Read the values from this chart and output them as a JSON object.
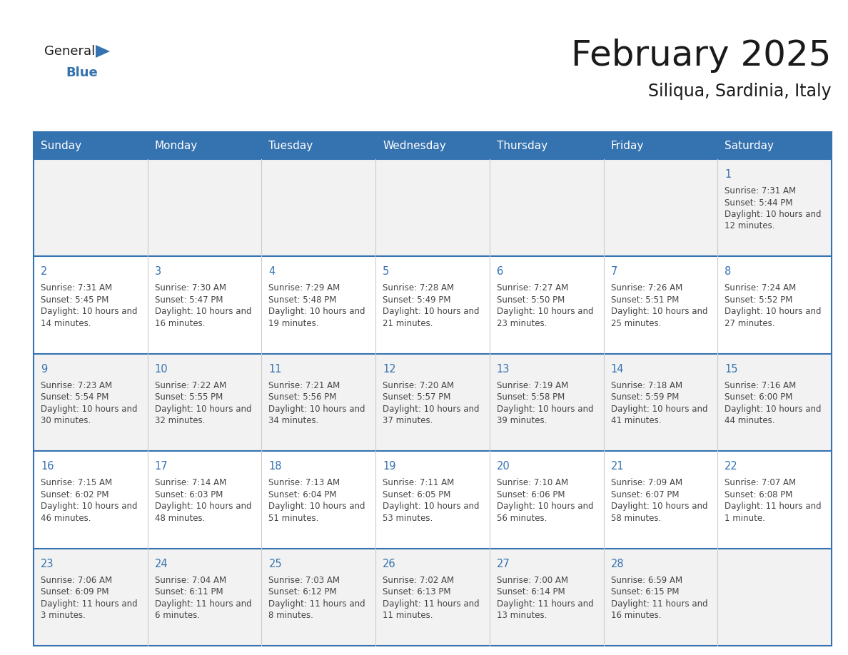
{
  "title": "February 2025",
  "subtitle": "Siliqua, Sardinia, Italy",
  "header_bg": "#3572B0",
  "header_text_color": "#FFFFFF",
  "header_font_size": 11,
  "days_of_week": [
    "Sunday",
    "Monday",
    "Tuesday",
    "Wednesday",
    "Thursday",
    "Friday",
    "Saturday"
  ],
  "title_font_size": 36,
  "subtitle_font_size": 17,
  "cell_text_color": "#444444",
  "day_number_color": "#3572B0",
  "line_color": "#3572B0",
  "bg_color": "#FFFFFF",
  "row_bg": [
    "#F2F2F2",
    "#FFFFFF",
    "#F2F2F2",
    "#FFFFFF",
    "#F2F2F2"
  ],
  "calendar": [
    [
      null,
      null,
      null,
      null,
      null,
      null,
      1
    ],
    [
      2,
      3,
      4,
      5,
      6,
      7,
      8
    ],
    [
      9,
      10,
      11,
      12,
      13,
      14,
      15
    ],
    [
      16,
      17,
      18,
      19,
      20,
      21,
      22
    ],
    [
      23,
      24,
      25,
      26,
      27,
      28,
      null
    ]
  ],
  "sun_data": {
    "1": {
      "sunrise": "7:31 AM",
      "sunset": "5:44 PM",
      "daylight": "10 hours and 12 minutes"
    },
    "2": {
      "sunrise": "7:31 AM",
      "sunset": "5:45 PM",
      "daylight": "10 hours and 14 minutes"
    },
    "3": {
      "sunrise": "7:30 AM",
      "sunset": "5:47 PM",
      "daylight": "10 hours and 16 minutes"
    },
    "4": {
      "sunrise": "7:29 AM",
      "sunset": "5:48 PM",
      "daylight": "10 hours and 19 minutes"
    },
    "5": {
      "sunrise": "7:28 AM",
      "sunset": "5:49 PM",
      "daylight": "10 hours and 21 minutes"
    },
    "6": {
      "sunrise": "7:27 AM",
      "sunset": "5:50 PM",
      "daylight": "10 hours and 23 minutes"
    },
    "7": {
      "sunrise": "7:26 AM",
      "sunset": "5:51 PM",
      "daylight": "10 hours and 25 minutes"
    },
    "8": {
      "sunrise": "7:24 AM",
      "sunset": "5:52 PM",
      "daylight": "10 hours and 27 minutes"
    },
    "9": {
      "sunrise": "7:23 AM",
      "sunset": "5:54 PM",
      "daylight": "10 hours and 30 minutes"
    },
    "10": {
      "sunrise": "7:22 AM",
      "sunset": "5:55 PM",
      "daylight": "10 hours and 32 minutes"
    },
    "11": {
      "sunrise": "7:21 AM",
      "sunset": "5:56 PM",
      "daylight": "10 hours and 34 minutes"
    },
    "12": {
      "sunrise": "7:20 AM",
      "sunset": "5:57 PM",
      "daylight": "10 hours and 37 minutes"
    },
    "13": {
      "sunrise": "7:19 AM",
      "sunset": "5:58 PM",
      "daylight": "10 hours and 39 minutes"
    },
    "14": {
      "sunrise": "7:18 AM",
      "sunset": "5:59 PM",
      "daylight": "10 hours and 41 minutes"
    },
    "15": {
      "sunrise": "7:16 AM",
      "sunset": "6:00 PM",
      "daylight": "10 hours and 44 minutes"
    },
    "16": {
      "sunrise": "7:15 AM",
      "sunset": "6:02 PM",
      "daylight": "10 hours and 46 minutes"
    },
    "17": {
      "sunrise": "7:14 AM",
      "sunset": "6:03 PM",
      "daylight": "10 hours and 48 minutes"
    },
    "18": {
      "sunrise": "7:13 AM",
      "sunset": "6:04 PM",
      "daylight": "10 hours and 51 minutes"
    },
    "19": {
      "sunrise": "7:11 AM",
      "sunset": "6:05 PM",
      "daylight": "10 hours and 53 minutes"
    },
    "20": {
      "sunrise": "7:10 AM",
      "sunset": "6:06 PM",
      "daylight": "10 hours and 56 minutes"
    },
    "21": {
      "sunrise": "7:09 AM",
      "sunset": "6:07 PM",
      "daylight": "10 hours and 58 minutes"
    },
    "22": {
      "sunrise": "7:07 AM",
      "sunset": "6:08 PM",
      "daylight": "11 hours and 1 minute"
    },
    "23": {
      "sunrise": "7:06 AM",
      "sunset": "6:09 PM",
      "daylight": "11 hours and 3 minutes"
    },
    "24": {
      "sunrise": "7:04 AM",
      "sunset": "6:11 PM",
      "daylight": "11 hours and 6 minutes"
    },
    "25": {
      "sunrise": "7:03 AM",
      "sunset": "6:12 PM",
      "daylight": "11 hours and 8 minutes"
    },
    "26": {
      "sunrise": "7:02 AM",
      "sunset": "6:13 PM",
      "daylight": "11 hours and 11 minutes"
    },
    "27": {
      "sunrise": "7:00 AM",
      "sunset": "6:14 PM",
      "daylight": "11 hours and 13 minutes"
    },
    "28": {
      "sunrise": "6:59 AM",
      "sunset": "6:15 PM",
      "daylight": "11 hours and 16 minutes"
    }
  }
}
